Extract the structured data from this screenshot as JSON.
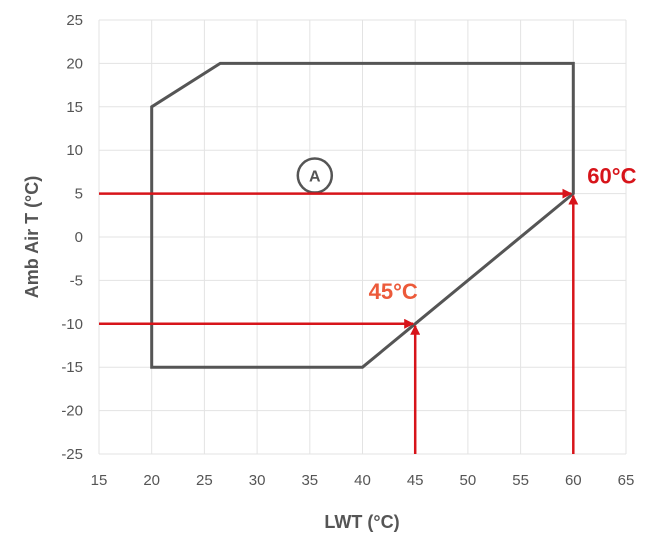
{
  "chart_data": {
    "type": "line",
    "title": "",
    "xlabel": "LWT (°C)",
    "ylabel": "Amb Air T (°C)",
    "xlim": [
      15,
      65
    ],
    "ylim": [
      -25,
      25
    ],
    "x_ticks": [
      15,
      20,
      25,
      30,
      35,
      40,
      45,
      50,
      55,
      60,
      65
    ],
    "y_ticks": [
      25,
      20,
      15,
      10,
      5,
      0,
      -5,
      -10,
      -15,
      -20,
      -25
    ],
    "grid": true,
    "envelope": {
      "name": "A",
      "color": "#555555",
      "points": [
        [
          20,
          15
        ],
        [
          26.5,
          20
        ],
        [
          60,
          20
        ],
        [
          60,
          5
        ],
        [
          45,
          -10
        ],
        [
          40,
          -15
        ],
        [
          20,
          -15
        ]
      ]
    },
    "annotations": [
      {
        "label": "60°C",
        "color": "#d7141a",
        "label_color": "#d7141a",
        "x": 60,
        "y": 5,
        "horizontal_from_x": 15,
        "vertical_from_y": -25
      },
      {
        "label": "45°C",
        "color": "#d7141a",
        "label_color": "#ec5a3a",
        "x": 45,
        "y": -10,
        "horizontal_from_x": 15,
        "vertical_from_y": -25
      }
    ],
    "zone_label": {
      "text": "A",
      "x": 35,
      "y": 8
    }
  }
}
